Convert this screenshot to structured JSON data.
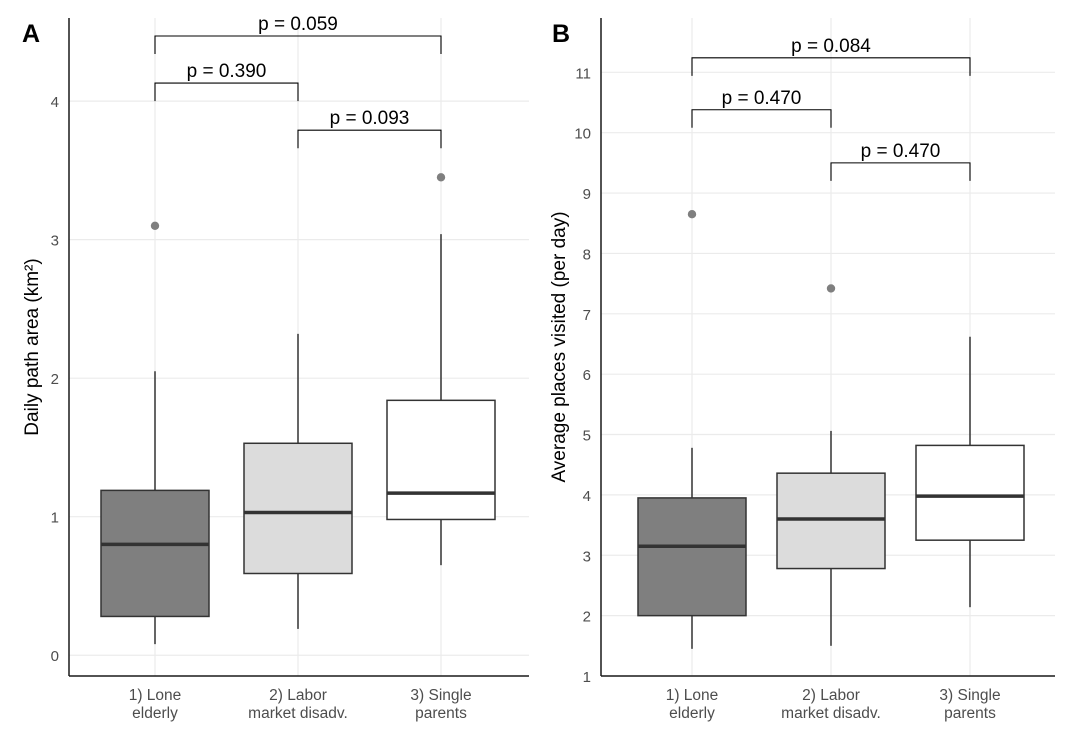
{
  "colors": {
    "background": "#ffffff",
    "grid": "#ebebeb",
    "axis": "#1a1a1a",
    "tick_label": "#4d4d4d",
    "box_line": "#333333",
    "outlier": "#7f7f7f",
    "fills": [
      "#7f7f7f",
      "#dcdcdc",
      "#ffffff"
    ]
  },
  "chart_data": [
    {
      "type": "box",
      "panel_label": "A",
      "title": "",
      "xlabel": "",
      "ylabel": "Daily path area (km²)",
      "ylim": [
        -0.15,
        4.6
      ],
      "yticks": [
        0,
        1,
        2,
        3,
        4
      ],
      "grid": true,
      "categories": [
        [
          "1) Lone",
          "elderly"
        ],
        [
          "2) Labor",
          "market disadv."
        ],
        [
          "3) Single",
          "parents"
        ]
      ],
      "boxes": [
        {
          "whisker_low": 0.08,
          "q1": 0.28,
          "median": 0.8,
          "q3": 1.19,
          "whisker_high": 2.05,
          "outliers": [
            3.1
          ]
        },
        {
          "whisker_low": 0.19,
          "q1": 0.59,
          "median": 1.03,
          "q3": 1.53,
          "whisker_high": 2.32,
          "outliers": []
        },
        {
          "whisker_low": 0.65,
          "q1": 0.98,
          "median": 1.17,
          "q3": 1.84,
          "whisker_high": 3.04,
          "outliers": [
            3.45
          ]
        }
      ],
      "comparisons": [
        {
          "from": 0,
          "to": 1,
          "y": 4.13,
          "label": "p = 0.390"
        },
        {
          "from": 1,
          "to": 2,
          "y": 3.79,
          "label": "p = 0.093"
        },
        {
          "from": 0,
          "to": 2,
          "y": 4.47,
          "label": "p = 0.059"
        }
      ]
    },
    {
      "type": "box",
      "panel_label": "B",
      "title": "",
      "xlabel": "",
      "ylabel": "Average places visited (per day)",
      "ylim": [
        1,
        11.9
      ],
      "yticks": [
        1,
        2,
        3,
        4,
        5,
        6,
        7,
        8,
        9,
        10,
        11
      ],
      "grid": true,
      "categories": [
        [
          "1) Lone",
          "elderly"
        ],
        [
          "2) Labor",
          "market disadv."
        ],
        [
          "3) Single",
          "parents"
        ]
      ],
      "boxes": [
        {
          "whisker_low": 1.45,
          "q1": 2.0,
          "median": 3.15,
          "q3": 3.95,
          "whisker_high": 4.78,
          "outliers": [
            8.65
          ]
        },
        {
          "whisker_low": 1.5,
          "q1": 2.78,
          "median": 3.6,
          "q3": 4.36,
          "whisker_high": 5.06,
          "outliers": [
            7.42
          ]
        },
        {
          "whisker_low": 2.14,
          "q1": 3.25,
          "median": 3.98,
          "q3": 4.82,
          "whisker_high": 6.62,
          "outliers": []
        }
      ],
      "comparisons": [
        {
          "from": 0,
          "to": 1,
          "y": 10.38,
          "label": "p = 0.470"
        },
        {
          "from": 1,
          "to": 2,
          "y": 9.5,
          "label": "p = 0.470"
        },
        {
          "from": 0,
          "to": 2,
          "y": 11.24,
          "label": "p = 0.084"
        }
      ]
    }
  ]
}
